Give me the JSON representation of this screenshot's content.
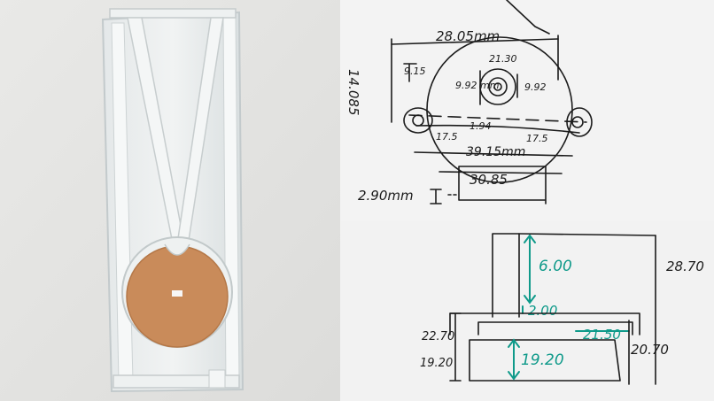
{
  "colors": {
    "wall": "#ececea",
    "acrylic_edge": "#cfd5d6",
    "disc": "#c98b5a",
    "board": "#f3f3f3",
    "ink": "#1b1b1b",
    "teal_marker": "#0f9a8a"
  },
  "top_sketch": {
    "labels": {
      "width_top": "28.05mm",
      "height_left": "14.085",
      "small_left": "9.15",
      "small_top": "21.30",
      "inner_left": "9.92 mm",
      "inner_right": "9.92",
      "center": "1.94",
      "ear_left": "17.5",
      "total_width": "39.15mm",
      "ear_right": "17.5",
      "base_width": "30.85",
      "thickness": "2.90mm"
    }
  },
  "bottom_sketch": {
    "labels": {
      "total_height": "28.70",
      "upper_post": "6.00",
      "gap": "2.00",
      "step": "21.50",
      "left_top": "22.70",
      "left_bottom": "19.20",
      "body_height": "19.20",
      "right_height": "20.70"
    }
  }
}
